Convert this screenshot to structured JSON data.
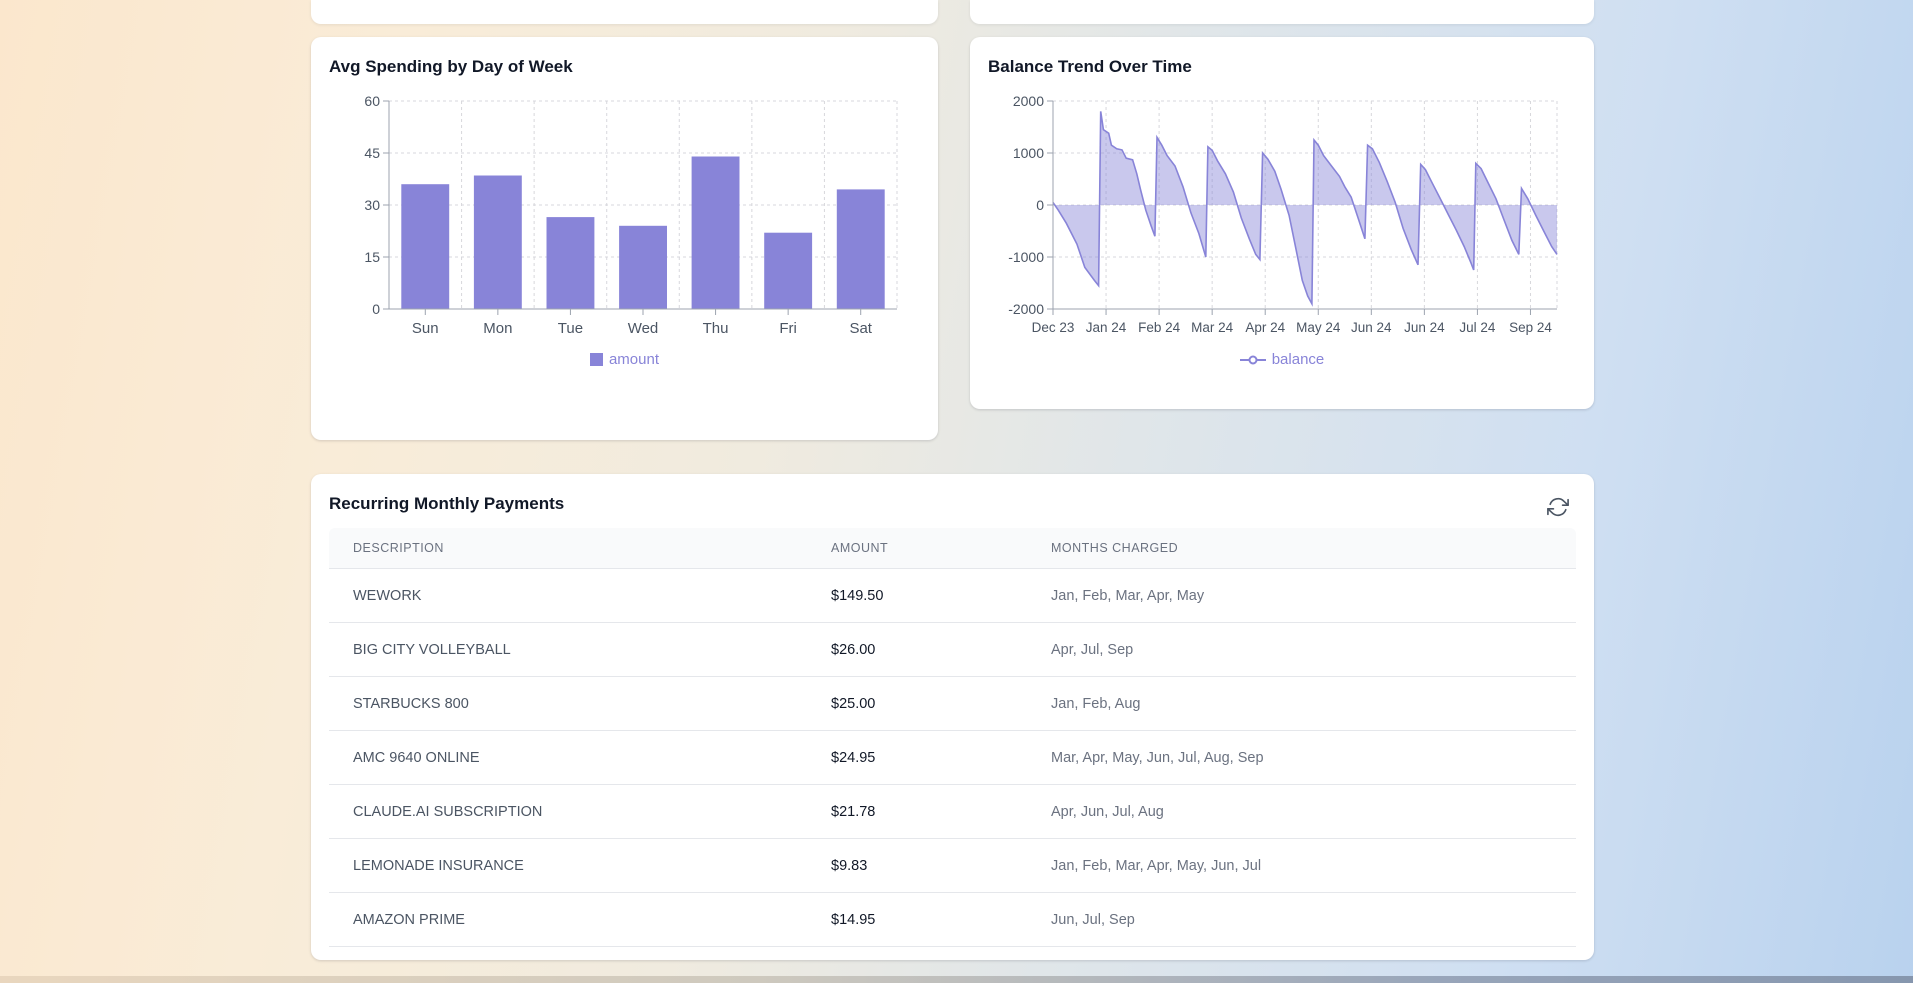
{
  "theme": {
    "accent": "#8884d8",
    "area_fill": "rgba(136,132,216,0.45)",
    "card_bg": "#ffffff",
    "bg_gradient_left": "#fbe7cd",
    "bg_gradient_right": "#b9d2ee"
  },
  "cards": {
    "spending": {
      "title": "Avg Spending by Day of Week"
    },
    "balance": {
      "title": "Balance Trend Over Time"
    },
    "recurring": {
      "title": "Recurring Monthly Payments"
    }
  },
  "chart_data": [
    {
      "type": "bar",
      "title": "Avg Spending by Day of Week",
      "categories": [
        "Sun",
        "Mon",
        "Tue",
        "Wed",
        "Thu",
        "Fri",
        "Sat"
      ],
      "values": [
        36,
        38.5,
        26.5,
        24,
        44,
        22,
        34.5
      ],
      "ylim": [
        0,
        60
      ],
      "yticks": [
        0,
        15,
        30,
        45,
        60
      ],
      "legend": "amount",
      "bar_color": "#8884d8",
      "grid": true,
      "legend_position": "bottom"
    },
    {
      "type": "area",
      "title": "Balance Trend Over Time",
      "x_tick_labels": [
        "Dec 23",
        "Jan 24",
        "Feb 24",
        "Mar 24",
        "Apr 24",
        "May 24",
        "Jun 24",
        "Jun 24",
        "Jul 24",
        "Sep 24"
      ],
      "x_max": 9.5,
      "ylim": [
        -2000,
        2000
      ],
      "yticks": [
        2000,
        1000,
        0,
        -1000,
        -2000
      ],
      "legend": "balance",
      "line_color": "#8884d8",
      "fill_color": "rgba(136,132,216,0.45)",
      "grid": true,
      "legend_position": "bottom",
      "points": [
        [
          0,
          50
        ],
        [
          0.1,
          -100
        ],
        [
          0.25,
          -350
        ],
        [
          0.45,
          -750
        ],
        [
          0.6,
          -1200
        ],
        [
          0.78,
          -1450
        ],
        [
          0.86,
          -1550
        ],
        [
          0.9,
          1800
        ],
        [
          0.95,
          1450
        ],
        [
          1.05,
          1380
        ],
        [
          1.1,
          1150
        ],
        [
          1.2,
          1080
        ],
        [
          1.3,
          1060
        ],
        [
          1.38,
          900
        ],
        [
          1.5,
          870
        ],
        [
          1.58,
          600
        ],
        [
          1.65,
          300
        ],
        [
          1.75,
          -100
        ],
        [
          1.85,
          -400
        ],
        [
          1.92,
          -600
        ],
        [
          1.96,
          1300
        ],
        [
          2.05,
          1150
        ],
        [
          2.15,
          950
        ],
        [
          2.3,
          750
        ],
        [
          2.45,
          350
        ],
        [
          2.6,
          -150
        ],
        [
          2.75,
          -550
        ],
        [
          2.88,
          -1000
        ],
        [
          2.92,
          1120
        ],
        [
          3.0,
          1050
        ],
        [
          3.1,
          850
        ],
        [
          3.25,
          600
        ],
        [
          3.4,
          250
        ],
        [
          3.55,
          -250
        ],
        [
          3.7,
          -650
        ],
        [
          3.82,
          -950
        ],
        [
          3.9,
          -1050
        ],
        [
          3.95,
          1000
        ],
        [
          4.05,
          880
        ],
        [
          4.18,
          650
        ],
        [
          4.3,
          300
        ],
        [
          4.45,
          -200
        ],
        [
          4.58,
          -850
        ],
        [
          4.7,
          -1450
        ],
        [
          4.8,
          -1750
        ],
        [
          4.88,
          -1900
        ],
        [
          4.92,
          1250
        ],
        [
          5.0,
          1150
        ],
        [
          5.1,
          950
        ],
        [
          5.25,
          750
        ],
        [
          5.4,
          550
        ],
        [
          5.5,
          350
        ],
        [
          5.62,
          150
        ],
        [
          5.75,
          -250
        ],
        [
          5.88,
          -650
        ],
        [
          5.93,
          1150
        ],
        [
          6.02,
          1080
        ],
        [
          6.15,
          820
        ],
        [
          6.3,
          450
        ],
        [
          6.45,
          50
        ],
        [
          6.6,
          -450
        ],
        [
          6.75,
          -850
        ],
        [
          6.88,
          -1150
        ],
        [
          6.93,
          780
        ],
        [
          7.02,
          680
        ],
        [
          7.15,
          420
        ],
        [
          7.3,
          120
        ],
        [
          7.45,
          -180
        ],
        [
          7.6,
          -480
        ],
        [
          7.75,
          -800
        ],
        [
          7.88,
          -1120
        ],
        [
          7.93,
          -1250
        ],
        [
          7.97,
          800
        ],
        [
          8.07,
          700
        ],
        [
          8.2,
          430
        ],
        [
          8.35,
          120
        ],
        [
          8.5,
          -280
        ],
        [
          8.65,
          -680
        ],
        [
          8.78,
          -950
        ],
        [
          8.83,
          320
        ],
        [
          8.95,
          120
        ],
        [
          9.1,
          -200
        ],
        [
          9.25,
          -500
        ],
        [
          9.4,
          -800
        ],
        [
          9.5,
          -950
        ]
      ]
    }
  ],
  "table": {
    "headers": [
      "DESCRIPTION",
      "AMOUNT",
      "MONTHS CHARGED"
    ],
    "rows": [
      {
        "description": "WEWORK",
        "amount": "$149.50",
        "months": "Jan, Feb, Mar, Apr, May"
      },
      {
        "description": "BIG CITY VOLLEYBALL",
        "amount": "$26.00",
        "months": "Apr, Jul, Sep"
      },
      {
        "description": "STARBUCKS 800",
        "amount": "$25.00",
        "months": "Jan, Feb, Aug"
      },
      {
        "description": "AMC 9640 ONLINE",
        "amount": "$24.95",
        "months": "Mar, Apr, May, Jun, Jul, Aug, Sep"
      },
      {
        "description": "CLAUDE.AI SUBSCRIPTION",
        "amount": "$21.78",
        "months": "Apr, Jun, Jul, Aug"
      },
      {
        "description": "LEMONADE INSURANCE",
        "amount": "$9.83",
        "months": "Jan, Feb, Mar, Apr, May, Jun, Jul"
      },
      {
        "description": "AMAZON PRIME",
        "amount": "$14.95",
        "months": "Jun, Jul, Sep"
      }
    ]
  },
  "icons": {
    "refresh": "refresh-icon",
    "legend_square": "legend-square-icon",
    "legend_line": "legend-line-dot-icon"
  }
}
